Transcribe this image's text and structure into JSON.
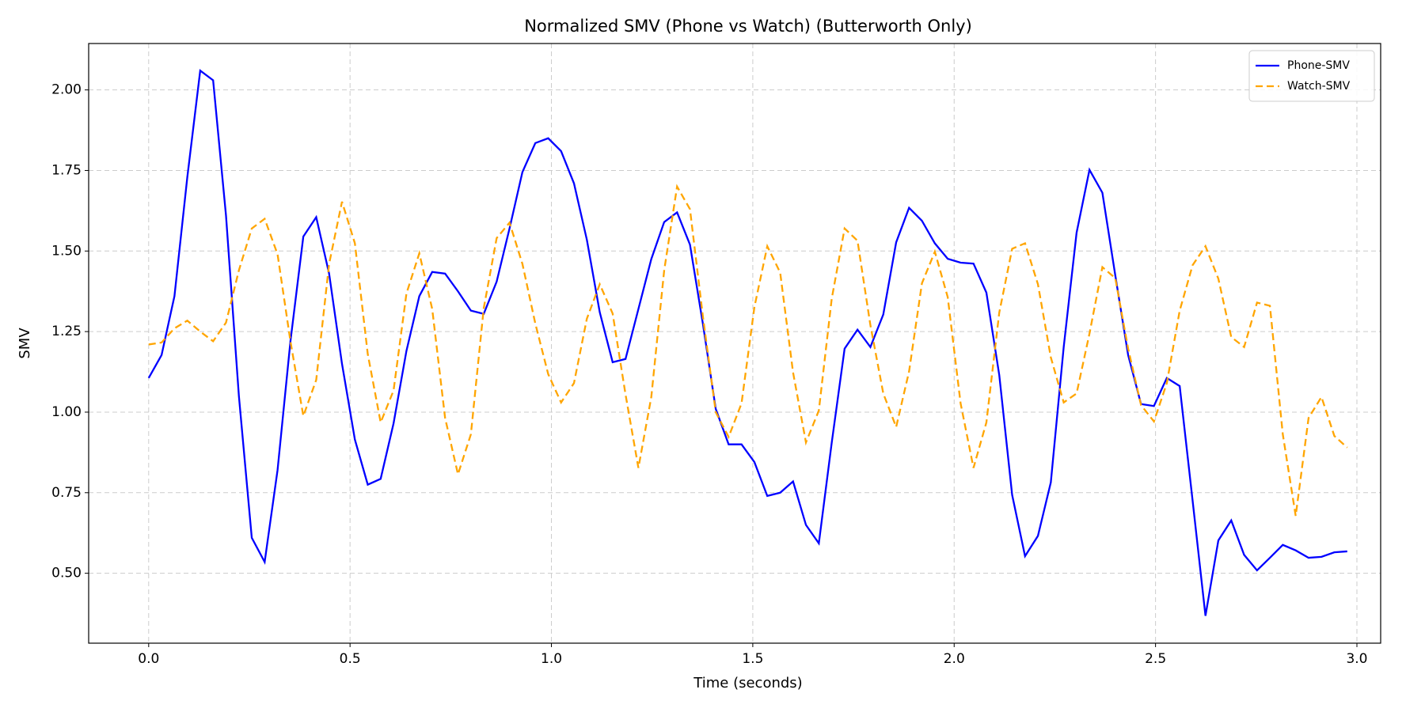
{
  "chart_data": {
    "type": "line",
    "title": "Normalized SMV (Phone vs Watch) (Butterworth Only)",
    "xlabel": "Time (seconds)",
    "ylabel": "SMV",
    "x": [
      0,
      0.032,
      0.064,
      0.096,
      0.128,
      0.16,
      0.192,
      0.224,
      0.256,
      0.288,
      0.32,
      0.352,
      0.384,
      0.416,
      0.448,
      0.48,
      0.512,
      0.544,
      0.576,
      0.608,
      0.64,
      0.672,
      0.704,
      0.736,
      0.768,
      0.8,
      0.832,
      0.864,
      0.896,
      0.928,
      0.96,
      0.992,
      1.024,
      1.056,
      1.088,
      1.12,
      1.152,
      1.184,
      1.216,
      1.248,
      1.28,
      1.312,
      1.344,
      1.376,
      1.408,
      1.44,
      1.472,
      1.504,
      1.536,
      1.568,
      1.6,
      1.632,
      1.664,
      1.696,
      1.728,
      1.76,
      1.792,
      1.824,
      1.856,
      1.888,
      1.92,
      1.952,
      1.984,
      2.016,
      2.048,
      2.08,
      2.112,
      2.144,
      2.176,
      2.208,
      2.24,
      2.272,
      2.304,
      2.336,
      2.368,
      2.4,
      2.432,
      2.464,
      2.496,
      2.528,
      2.56,
      2.592,
      2.624,
      2.656,
      2.688,
      2.72,
      2.752,
      2.784,
      2.816,
      2.848,
      2.88,
      2.912,
      2.944,
      2.976
    ],
    "series": [
      {
        "name": "Phone-SMV",
        "color": "#0000ff",
        "linestyle": "solid",
        "values": [
          1.106,
          1.177,
          1.36,
          1.73,
          2.06,
          2.03,
          1.61,
          1.05,
          0.61,
          0.535,
          0.82,
          1.22,
          1.545,
          1.605,
          1.43,
          1.15,
          0.915,
          0.775,
          0.793,
          0.965,
          1.19,
          1.36,
          1.435,
          1.43,
          1.375,
          1.315,
          1.305,
          1.405,
          1.57,
          1.745,
          1.835,
          1.85,
          1.81,
          1.71,
          1.535,
          1.31,
          1.155,
          1.165,
          1.32,
          1.475,
          1.59,
          1.62,
          1.52,
          1.275,
          1.01,
          0.9,
          0.9,
          0.845,
          0.74,
          0.75,
          0.785,
          0.65,
          0.593,
          0.905,
          1.197,
          1.256,
          1.202,
          1.303,
          1.527,
          1.634,
          1.594,
          1.524,
          1.476,
          1.464,
          1.461,
          1.371,
          1.115,
          0.743,
          0.553,
          0.616,
          0.782,
          1.202,
          1.557,
          1.752,
          1.681,
          1.425,
          1.177,
          1.025,
          1.019,
          1.106,
          1.081,
          0.726,
          0.368,
          0.602,
          0.664,
          0.557,
          0.509,
          0.548,
          0.588,
          0.571,
          0.548,
          0.551,
          0.565,
          0.568
        ]
      },
      {
        "name": "Watch-SMV",
        "color": "#ffa500",
        "linestyle": "dashed",
        "values": [
          1.21,
          1.216,
          1.26,
          1.284,
          1.25,
          1.22,
          1.278,
          1.44,
          1.57,
          1.6,
          1.49,
          1.22,
          0.988,
          1.1,
          1.46,
          1.653,
          1.524,
          1.18,
          0.968,
          1.067,
          1.368,
          1.493,
          1.32,
          0.982,
          0.807,
          0.931,
          1.323,
          1.54,
          1.588,
          1.46,
          1.275,
          1.118,
          1.03,
          1.09,
          1.29,
          1.397,
          1.306,
          1.055,
          0.827,
          1.047,
          1.44,
          1.7,
          1.63,
          1.298,
          1.0,
          0.923,
          1.027,
          1.326,
          1.515,
          1.433,
          1.123,
          0.906,
          1.005,
          1.352,
          1.57,
          1.532,
          1.27,
          1.058,
          0.954,
          1.126,
          1.4,
          1.498,
          1.357,
          1.027,
          0.827,
          0.968,
          1.309,
          1.507,
          1.524,
          1.397,
          1.17,
          1.03,
          1.058,
          1.244,
          1.45,
          1.416,
          1.197,
          1.022,
          0.971,
          1.09,
          1.315,
          1.456,
          1.515,
          1.414,
          1.233,
          1.202,
          1.34,
          1.33,
          0.931,
          0.678,
          0.982,
          1.047,
          0.926,
          0.89
        ]
      }
    ],
    "xlim": [
      -0.149,
      3.059
    ],
    "ylim": [
      0.283,
      2.144
    ],
    "xticks": [
      {
        "value": 0,
        "label": "0.0"
      },
      0.5,
      {
        "value": 1,
        "label": "1.0"
      },
      1.5,
      {
        "value": 2,
        "label": "2.0"
      },
      2.5,
      {
        "value": 3,
        "label": "3.0"
      }
    ],
    "yticks": [
      {
        "value": 0.5,
        "label": "0.50"
      },
      {
        "value": 0.75,
        "label": "0.75"
      },
      {
        "value": 1,
        "label": "1.00"
      },
      {
        "value": 1.25,
        "label": "1.25"
      },
      {
        "value": 1.5,
        "label": "1.50"
      },
      {
        "value": 1.75,
        "label": "1.75"
      },
      {
        "value": 2,
        "label": "2.00"
      }
    ],
    "grid": true,
    "legend": "upper right"
  }
}
